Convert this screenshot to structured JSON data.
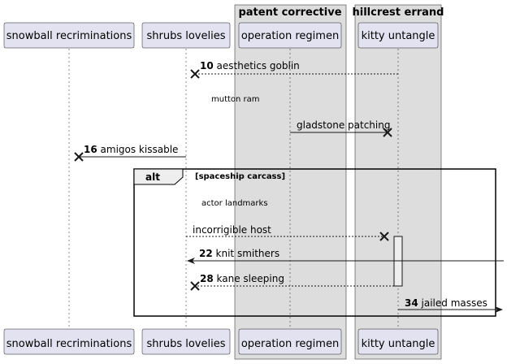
{
  "groups": [
    {
      "label": "patent corrective"
    },
    {
      "label": "hillcrest errand"
    }
  ],
  "participants": [
    {
      "name": "snowball recriminations"
    },
    {
      "name": "shrubs lovelies"
    },
    {
      "name": "operation regimen"
    },
    {
      "name": "kitty untangle"
    }
  ],
  "messages": [
    {
      "num": "10",
      "text": "aesthetics goblin",
      "from": "kitty untangle",
      "to": "shrubs lovelies",
      "style": "dashed",
      "head": "cross"
    },
    {
      "num": "",
      "text": "gladstone patching",
      "from": "operation regimen",
      "to": "kitty untangle",
      "style": "solid",
      "head": "cross"
    },
    {
      "num": "16",
      "text": "amigos kissable",
      "from": "shrubs lovelies",
      "to": "snowball recriminations",
      "style": "solid",
      "head": "cross"
    },
    {
      "num": "",
      "text": "incorrigible host",
      "from": "shrubs lovelies",
      "to": "kitty untangle",
      "style": "dashed",
      "head": "cross"
    },
    {
      "num": "22",
      "text": "knit smithers",
      "from": "[right edge]",
      "to": "shrubs lovelies",
      "style": "solid",
      "head": "arrow"
    },
    {
      "num": "28",
      "text": "kane sleeping",
      "from": "kitty untangle",
      "to": "shrubs lovelies",
      "style": "dashed",
      "head": "cross"
    },
    {
      "num": "34",
      "text": "jailed masses",
      "from": "kitty untangle",
      "to": "[right edge]",
      "style": "solid",
      "head": "arrow"
    }
  ],
  "delays": [
    {
      "text": "mutton ram"
    },
    {
      "text": "actor landmarks"
    }
  ],
  "fragment": {
    "operator": "alt",
    "condition": "[spaceship carcass]"
  },
  "colors": {
    "participant_fill": "#e2e2f0",
    "participant_border": "#181818",
    "group_fill": "#dddddd",
    "activation_fill": "#eeeeee",
    "line": "#181818"
  }
}
